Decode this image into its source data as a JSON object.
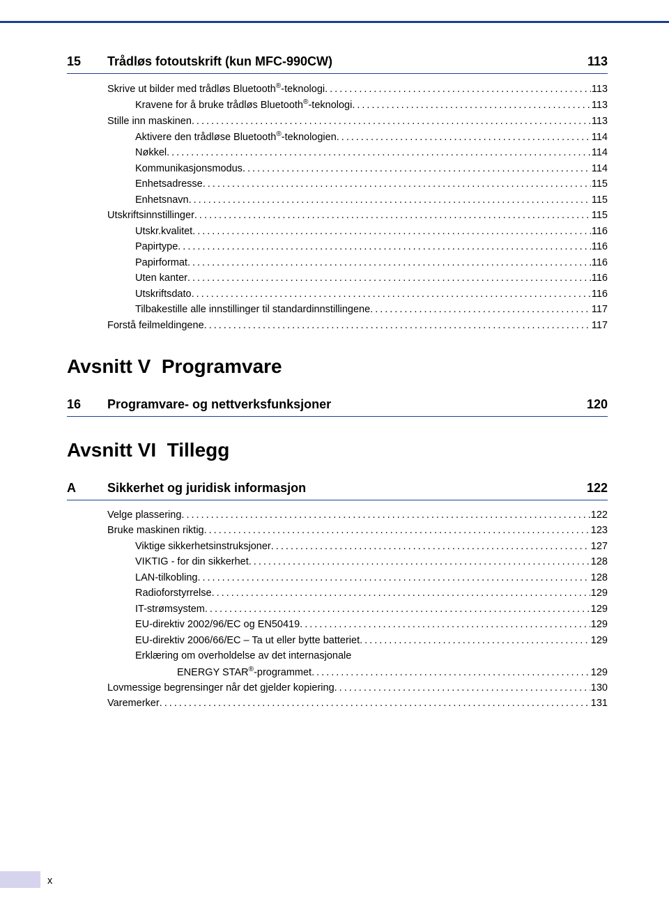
{
  "colors": {
    "rule": "#1b3f8f",
    "footer_tab": "#d6d4ed",
    "text": "#000000",
    "background": "#ffffff"
  },
  "typography": {
    "body_fontsize": 14.5,
    "chapter_fontsize": 18,
    "section_fontsize": 28
  },
  "chapter15": {
    "num": "15",
    "title": "Trådløs fotoutskrift (kun MFC-990CW)",
    "page": "113",
    "entries": [
      {
        "level": 1,
        "text": "Skrive ut bilder med trådløs Bluetooth®-teknologi",
        "sup": true,
        "page": "113"
      },
      {
        "level": 2,
        "text": "Kravene for å bruke trådløs Bluetooth®-teknologi",
        "sup": true,
        "page": "113"
      },
      {
        "level": 1,
        "text": "Stille inn maskinen",
        "page": "113"
      },
      {
        "level": 2,
        "text": "Aktivere den trådløse Bluetooth®-teknologien",
        "sup": true,
        "page": "114"
      },
      {
        "level": 2,
        "text": "Nøkkel",
        "page": "114"
      },
      {
        "level": 2,
        "text": "Kommunikasjonsmodus",
        "page": "114"
      },
      {
        "level": 2,
        "text": "Enhetsadresse",
        "page": "115"
      },
      {
        "level": 2,
        "text": "Enhetsnavn",
        "page": "115"
      },
      {
        "level": 1,
        "text": "Utskriftsinnstillinger",
        "page": "115"
      },
      {
        "level": 2,
        "text": "Utskr.kvalitet",
        "page": "116"
      },
      {
        "level": 2,
        "text": "Papirtype",
        "page": "116"
      },
      {
        "level": 2,
        "text": "Papirformat",
        "page": "116"
      },
      {
        "level": 2,
        "text": "Uten kanter",
        "page": "116"
      },
      {
        "level": 2,
        "text": "Utskriftsdato",
        "page": "116"
      },
      {
        "level": 2,
        "text": "Tilbakestille alle innstillinger til standardinnstillingene",
        "page": "117"
      },
      {
        "level": 1,
        "text": "Forstå feilmeldingene",
        "page": "117"
      }
    ]
  },
  "sectionV": {
    "heading": "Avsnitt V  Programvare"
  },
  "chapter16": {
    "num": "16",
    "title": "Programvare- og nettverksfunksjoner",
    "page": "120"
  },
  "sectionVI": {
    "heading": "Avsnitt VI  Tillegg"
  },
  "appendixA": {
    "num": "A",
    "title": "Sikkerhet og juridisk informasjon",
    "page": "122",
    "entries": [
      {
        "level": 1,
        "text": "Velge plassering",
        "page": "122"
      },
      {
        "level": 1,
        "text": "Bruke maskinen riktig",
        "page": "123"
      },
      {
        "level": 2,
        "text": "Viktige sikkerhetsinstruksjoner",
        "page": "127"
      },
      {
        "level": 2,
        "text": "VIKTIG - for din sikkerhet",
        "page": "128"
      },
      {
        "level": 2,
        "text": "LAN-tilkobling",
        "page": "128"
      },
      {
        "level": 2,
        "text": "Radioforstyrrelse",
        "page": "129"
      },
      {
        "level": 2,
        "text": "IT-strømsystem",
        "page": "129"
      },
      {
        "level": 2,
        "text": "EU-direktiv 2002/96/EC og EN50419",
        "page": "129"
      },
      {
        "level": 2,
        "text": "EU-direktiv 2006/66/EC – Ta ut eller bytte batteriet",
        "page": "129"
      },
      {
        "level": 2,
        "multiline": true,
        "line1": "Erklæring om overholdelse av det internasjonale",
        "line2": "ENERGY STAR®-programmet",
        "sup2": true,
        "page": "129"
      },
      {
        "level": 1,
        "text": "Lovmessige begrensinger når det gjelder kopiering",
        "page": "130"
      },
      {
        "level": 1,
        "text": "Varemerker",
        "page": "131"
      }
    ]
  },
  "footer": {
    "roman": "x"
  }
}
